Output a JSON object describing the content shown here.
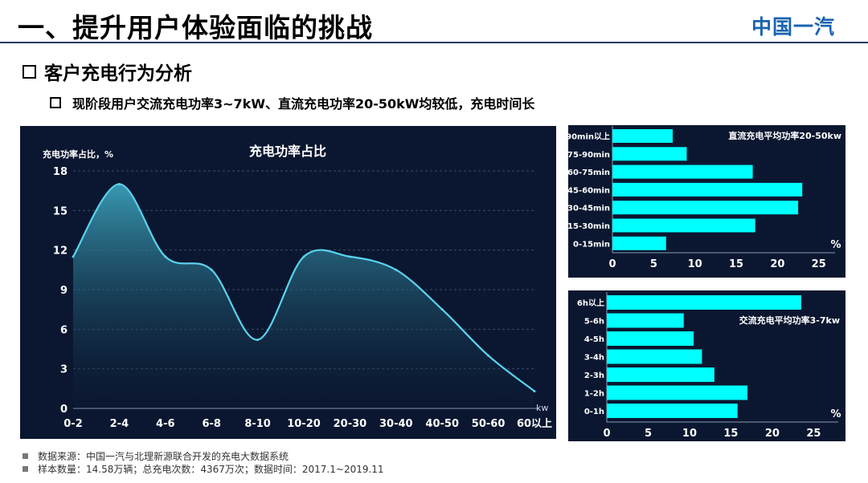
{
  "header": {
    "title": "一、提升用户体验面临的挑战",
    "logo": "中国一汽"
  },
  "section": {
    "heading": "客户充电行为分析",
    "bullet": "现阶段用户交流充电功率3~7kW、直流充电功率20-50kW均较低，充电时间长"
  },
  "chart_data": [
    {
      "type": "area",
      "title": "充电功率占比",
      "ylabel": "充电功率占比，%",
      "xlabel": "kw",
      "categories": [
        "0-2",
        "2-4",
        "4-6",
        "6-8",
        "8-10",
        "10-20",
        "20-30",
        "30-40",
        "40-50",
        "50-60",
        "60以上"
      ],
      "values": [
        11.5,
        17,
        11.5,
        10.5,
        5.2,
        11.5,
        11.5,
        10.5,
        7.5,
        4,
        1.3
      ],
      "y_ticks": [
        0,
        3,
        6,
        9,
        12,
        15,
        18
      ],
      "ylim": [
        0,
        18
      ],
      "grid": true
    },
    {
      "type": "bar",
      "orientation": "horizontal",
      "title": "直流充电平均功率20-50kw",
      "xlabel": "%",
      "categories": [
        "90min以上",
        "75-90min",
        "60-75min",
        "45-60min",
        "30-45min",
        "15-30min",
        "0-15min"
      ],
      "values": [
        7.3,
        9,
        17,
        23,
        22.5,
        17.3,
        6.5
      ],
      "x_ticks": [
        0,
        5,
        10,
        15,
        20,
        25
      ],
      "xlim": [
        0,
        26
      ]
    },
    {
      "type": "bar",
      "orientation": "horizontal",
      "title": "交流充电平均功率3-7kw",
      "xlabel": "%",
      "categories": [
        "6h以上",
        "5-6h",
        "4-5h",
        "3-4h",
        "2-3h",
        "1-2h",
        "0-1h"
      ],
      "values": [
        23.5,
        9.3,
        10.5,
        11.5,
        13,
        17,
        15.8
      ],
      "x_ticks": [
        0,
        5,
        10,
        15,
        20,
        25
      ],
      "xlim": [
        0,
        27
      ]
    }
  ],
  "footer": {
    "source": "数据来源：中国一汽与北理新源联合开发的充电大数据系统",
    "sample": "样本数量：14.58万辆；总充电次数：4367万次；数据时间：2017.1~2019.11"
  },
  "colors": {
    "panel_bg": "#0b1730",
    "bar": "#00ffff",
    "line": "#5ad3ee"
  }
}
